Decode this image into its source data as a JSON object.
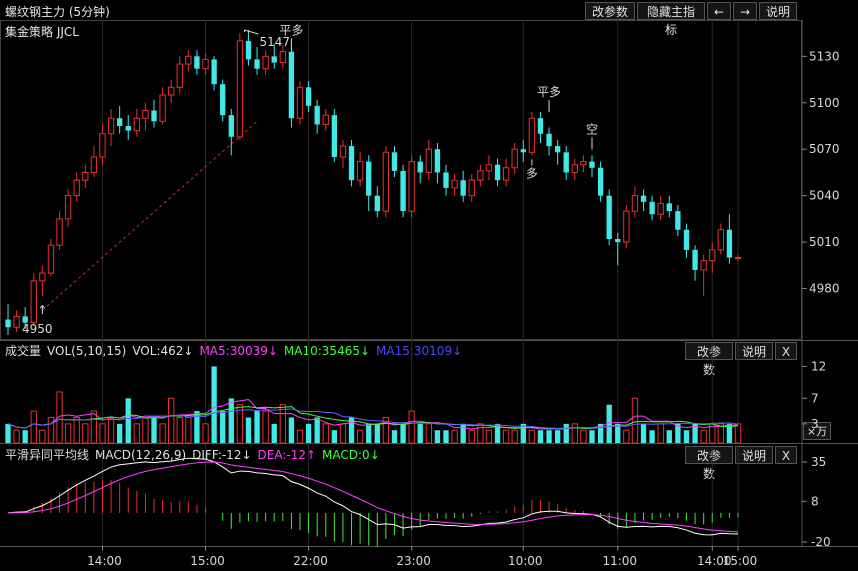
{
  "window": {
    "title": "螺纹钢主力 (5分钟)",
    "buttons": {
      "params": "改参数",
      "hide": "隐藏主指标",
      "left": "←",
      "right": "→",
      "help": "说明"
    }
  },
  "main_panel": {
    "strategy_label": "集金策略  JJCL",
    "y_ticks": [
      "5130",
      "5100",
      "5070",
      "5040",
      "5010",
      "4980"
    ],
    "high_label": "5147",
    "low_label": "4950",
    "signals": [
      {
        "text": "平多",
        "color": "#2ecc40"
      },
      {
        "text": "平多",
        "color": "#2ecc40"
      },
      {
        "text": "多",
        "color": "#ff3030"
      },
      {
        "text": "空",
        "color": "#2ecc40"
      }
    ]
  },
  "vol_panel": {
    "name": "成交量",
    "legend": [
      "VOL(5,10,15)",
      "VOL:462↓",
      "MA5:30039↓",
      "MA10:35465↓",
      "MA15:30109↓"
    ],
    "legend_colors": [
      "#e0e0e0",
      "#e0e0e0",
      "#ff40ff",
      "#40ff40",
      "#4040ff"
    ],
    "y_ticks": [
      "12",
      "7",
      "3"
    ],
    "unit_button": "×万",
    "buttons": {
      "params": "改参数",
      "help": "说明",
      "close": "X"
    }
  },
  "macd_panel": {
    "name": "平滑异同平均线",
    "legend": [
      "MACD(12,26,9)",
      "DIFF:-12↓",
      "DEA:-12↑",
      "MACD:0↓"
    ],
    "legend_colors": [
      "#e0e0e0",
      "#e0e0e0",
      "#ff40ff",
      "#40ff40"
    ],
    "y_ticks": [
      "35",
      "8",
      "-20"
    ],
    "buttons": {
      "params": "改参数",
      "help": "说明",
      "close": "X"
    }
  },
  "x_axis": {
    "ticks": [
      "14:00",
      "15:00",
      "22:00",
      "23:00",
      "10:00",
      "11:00",
      "14:00",
      "15:00"
    ]
  },
  "chart_data": {
    "type": "candlestick",
    "title": "螺纹钢主力 (5分钟)",
    "ylim": [
      4950,
      5147
    ],
    "y_ticks": [
      5130,
      5100,
      5070,
      5040,
      5010,
      4980
    ],
    "candles": [
      [
        4960,
        4955,
        4970,
        4950
      ],
      [
        4955,
        4962,
        4966,
        4952
      ],
      [
        4962,
        4958,
        4968,
        4954
      ],
      [
        4958,
        4985,
        4990,
        4956
      ],
      [
        4985,
        4990,
        4995,
        4975
      ],
      [
        4990,
        5008,
        5012,
        4988
      ],
      [
        5008,
        5025,
        5030,
        5005
      ],
      [
        5025,
        5040,
        5044,
        5020
      ],
      [
        5040,
        5050,
        5055,
        5036
      ],
      [
        5050,
        5055,
        5060,
        5045
      ],
      [
        5055,
        5065,
        5072,
        5052
      ],
      [
        5065,
        5080,
        5086,
        5060
      ],
      [
        5080,
        5090,
        5096,
        5072
      ],
      [
        5090,
        5085,
        5098,
        5080
      ],
      [
        5085,
        5082,
        5092,
        5076
      ],
      [
        5082,
        5090,
        5096,
        5078
      ],
      [
        5090,
        5095,
        5100,
        5082
      ],
      [
        5095,
        5088,
        5102,
        5084
      ],
      [
        5088,
        5105,
        5110,
        5086
      ],
      [
        5105,
        5110,
        5115,
        5100
      ],
      [
        5110,
        5125,
        5130,
        5106
      ],
      [
        5125,
        5130,
        5134,
        5120
      ],
      [
        5130,
        5122,
        5134,
        5118
      ],
      [
        5122,
        5128,
        5132,
        5118
      ],
      [
        5128,
        5112,
        5130,
        5108
      ],
      [
        5112,
        5092,
        5115,
        5088
      ],
      [
        5092,
        5078,
        5096,
        5066
      ],
      [
        5078,
        5140,
        5145,
        5076
      ],
      [
        5140,
        5128,
        5147,
        5124
      ],
      [
        5128,
        5122,
        5136,
        5118
      ],
      [
        5122,
        5130,
        5134,
        5118
      ],
      [
        5130,
        5126,
        5138,
        5122
      ],
      [
        5126,
        5133,
        5137,
        5122
      ],
      [
        5133,
        5090,
        5136,
        5084
      ],
      [
        5090,
        5110,
        5114,
        5086
      ],
      [
        5110,
        5098,
        5114,
        5094
      ],
      [
        5098,
        5086,
        5102,
        5080
      ],
      [
        5086,
        5092,
        5096,
        5082
      ],
      [
        5092,
        5065,
        5096,
        5062
      ],
      [
        5065,
        5072,
        5076,
        5058
      ],
      [
        5072,
        5050,
        5076,
        5046
      ],
      [
        5050,
        5062,
        5068,
        5046
      ],
      [
        5062,
        5040,
        5066,
        5030
      ],
      [
        5040,
        5030,
        5046,
        5026
      ],
      [
        5030,
        5068,
        5072,
        5026
      ],
      [
        5068,
        5056,
        5072,
        5052
      ],
      [
        5056,
        5030,
        5060,
        5026
      ],
      [
        5030,
        5062,
        5066,
        5026
      ],
      [
        5062,
        5055,
        5066,
        5048
      ],
      [
        5055,
        5070,
        5076,
        5050
      ],
      [
        5070,
        5055,
        5074,
        5048
      ],
      [
        5055,
        5045,
        5060,
        5040
      ],
      [
        5045,
        5050,
        5054,
        5040
      ],
      [
        5050,
        5040,
        5056,
        5036
      ],
      [
        5040,
        5050,
        5054,
        5036
      ],
      [
        5050,
        5056,
        5060,
        5046
      ],
      [
        5056,
        5060,
        5066,
        5050
      ],
      [
        5060,
        5050,
        5064,
        5046
      ],
      [
        5050,
        5058,
        5064,
        5046
      ],
      [
        5058,
        5070,
        5074,
        5054
      ],
      [
        5070,
        5068,
        5076,
        5062
      ],
      [
        5068,
        5090,
        5094,
        5066
      ],
      [
        5090,
        5080,
        5094,
        5074
      ],
      [
        5080,
        5072,
        5084,
        5066
      ],
      [
        5072,
        5068,
        5076,
        5060
      ],
      [
        5068,
        5055,
        5072,
        5050
      ],
      [
        5055,
        5060,
        5064,
        5050
      ],
      [
        5060,
        5062,
        5066,
        5055
      ],
      [
        5062,
        5058,
        5066,
        5052
      ],
      [
        5058,
        5040,
        5062,
        5036
      ],
      [
        5040,
        5012,
        5044,
        5008
      ],
      [
        5012,
        5010,
        5016,
        4995
      ],
      [
        5010,
        5030,
        5034,
        5006
      ],
      [
        5030,
        5040,
        5046,
        5026
      ],
      [
        5040,
        5036,
        5044,
        5030
      ],
      [
        5036,
        5028,
        5040,
        5024
      ],
      [
        5028,
        5035,
        5040,
        5024
      ],
      [
        5035,
        5030,
        5040,
        5026
      ],
      [
        5030,
        5018,
        5034,
        5014
      ],
      [
        5018,
        5005,
        5022,
        5000
      ],
      [
        5005,
        4992,
        5008,
        4985
      ],
      [
        4992,
        4998,
        5002,
        4975
      ],
      [
        4998,
        5005,
        5010,
        4990
      ],
      [
        5005,
        5018,
        5022,
        5002
      ],
      [
        5018,
        5000,
        5028,
        4996
      ],
      [
        5000,
        5000,
        5002,
        4998
      ]
    ],
    "volume": [
      3,
      2,
      2,
      5,
      2,
      4,
      8,
      3,
      4,
      3,
      5,
      3,
      4,
      3,
      7,
      3,
      4,
      4,
      3,
      7,
      4,
      4,
      5,
      3,
      12,
      5,
      7,
      6,
      4,
      5,
      5,
      3,
      6,
      4,
      2,
      3,
      4,
      3,
      2,
      3,
      4,
      2,
      3,
      3,
      4,
      2,
      3,
      5,
      3,
      3,
      2,
      2,
      2,
      3,
      2,
      3,
      2,
      3,
      2,
      2,
      3,
      2,
      2,
      2,
      2,
      3,
      3,
      2,
      2,
      3,
      6,
      3,
      2,
      7,
      3,
      2,
      3,
      2,
      3,
      2,
      3,
      2,
      3,
      3,
      3,
      3
    ],
    "macd": {
      "diff_end": -12,
      "dea_end": -12,
      "macd_end": 0,
      "ylim": [
        -20,
        35
      ]
    }
  }
}
